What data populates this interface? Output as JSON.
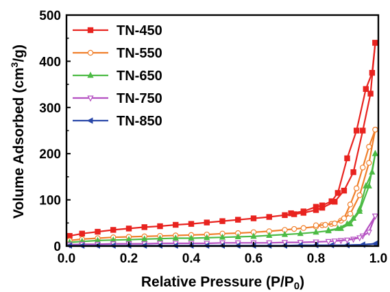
{
  "chart_data": {
    "type": "line",
    "xlabel": "Relative Pressure (P/P",
    "xlabel_sub": "0",
    "xlabel_end": ")",
    "ylabel_main": "Volume Adsorbed (cm",
    "ylabel_sup": "3",
    "ylabel_end": "/g)",
    "xlim": [
      0.0,
      1.0
    ],
    "ylim": [
      0,
      500
    ],
    "xticks": [
      "0.0",
      "0.2",
      "0.4",
      "0.6",
      "0.8",
      "1.0"
    ],
    "yticks": [
      "0",
      "100",
      "200",
      "300",
      "400",
      "500"
    ],
    "legend_position": "top-left",
    "series": [
      {
        "name": "TN-450",
        "color": "#e8231f",
        "marker": "square-filled",
        "adsorption": {
          "x": [
            0.01,
            0.05,
            0.1,
            0.15,
            0.2,
            0.25,
            0.3,
            0.35,
            0.4,
            0.45,
            0.5,
            0.55,
            0.6,
            0.65,
            0.7,
            0.73,
            0.76,
            0.8,
            0.82,
            0.86,
            0.89,
            0.92,
            0.95,
            0.975,
            0.99
          ],
          "y": [
            22,
            27,
            31,
            35,
            38,
            41,
            43,
            46,
            48,
            51,
            54,
            57,
            60,
            63,
            67,
            69,
            72,
            78,
            83,
            96,
            120,
            160,
            250,
            330,
            440
          ]
        },
        "desorption": {
          "x": [
            0.99,
            0.98,
            0.96,
            0.93,
            0.9,
            0.87,
            0.85,
            0.82,
            0.8,
            0.76,
            0.72
          ],
          "y": [
            440,
            375,
            340,
            250,
            190,
            115,
            97,
            88,
            85,
            75,
            71
          ]
        }
      },
      {
        "name": "TN-550",
        "color": "#f07f2a",
        "marker": "circle-open",
        "adsorption": {
          "x": [
            0.01,
            0.05,
            0.1,
            0.15,
            0.2,
            0.25,
            0.3,
            0.35,
            0.4,
            0.45,
            0.5,
            0.55,
            0.6,
            0.65,
            0.7,
            0.73,
            0.76,
            0.8,
            0.82,
            0.85,
            0.88,
            0.91,
            0.94,
            0.97,
            0.99
          ],
          "y": [
            12,
            15,
            17,
            19,
            20,
            21,
            22,
            23,
            24,
            25,
            27,
            28,
            30,
            32,
            35,
            37,
            39,
            42,
            45,
            48,
            55,
            70,
            110,
            180,
            252
          ]
        },
        "desorption": {
          "x": [
            0.99,
            0.97,
            0.95,
            0.93,
            0.91,
            0.89,
            0.86,
            0.83,
            0.8
          ],
          "y": [
            252,
            215,
            170,
            125,
            90,
            60,
            49,
            46,
            45
          ]
        }
      },
      {
        "name": "TN-650",
        "color": "#4cbb44",
        "marker": "triangle-up-filled",
        "adsorption": {
          "x": [
            0.01,
            0.05,
            0.1,
            0.15,
            0.2,
            0.25,
            0.3,
            0.35,
            0.4,
            0.45,
            0.5,
            0.55,
            0.6,
            0.65,
            0.7,
            0.75,
            0.8,
            0.84,
            0.88,
            0.91,
            0.94,
            0.97,
            0.99
          ],
          "y": [
            8,
            10,
            12,
            13,
            14,
            15,
            16,
            17,
            17,
            18,
            19,
            20,
            21,
            23,
            25,
            27,
            30,
            33,
            38,
            48,
            75,
            130,
            200
          ]
        },
        "desorption": {
          "x": [
            0.99,
            0.98,
            0.96,
            0.94,
            0.92,
            0.9,
            0.87,
            0.84
          ],
          "y": [
            200,
            160,
            130,
            80,
            60,
            48,
            38,
            34
          ]
        }
      },
      {
        "name": "TN-750",
        "color": "#b44fc1",
        "marker": "triangle-down-open",
        "adsorption": {
          "x": [
            0.01,
            0.05,
            0.1,
            0.15,
            0.2,
            0.25,
            0.3,
            0.35,
            0.4,
            0.45,
            0.5,
            0.55,
            0.6,
            0.65,
            0.7,
            0.75,
            0.8,
            0.84,
            0.88,
            0.92,
            0.95,
            0.99
          ],
          "y": [
            3,
            4,
            4,
            5,
            5,
            5,
            6,
            6,
            6,
            6,
            7,
            7,
            7,
            7,
            8,
            8,
            9,
            10,
            12,
            15,
            22,
            65
          ]
        },
        "desorption": {
          "x": [
            0.99,
            0.97,
            0.94,
            0.9,
            0.86
          ],
          "y": [
            65,
            30,
            18,
            13,
            11
          ]
        }
      },
      {
        "name": "TN-850",
        "color": "#2846a8",
        "marker": "triangle-left-filled",
        "adsorption": {
          "x": [
            0.01,
            0.05,
            0.1,
            0.15,
            0.2,
            0.25,
            0.3,
            0.35,
            0.4,
            0.45,
            0.5,
            0.55,
            0.6,
            0.65,
            0.7,
            0.75,
            0.8,
            0.85,
            0.9,
            0.95,
            0.99
          ],
          "y": [
            1,
            1,
            1,
            1,
            1,
            1,
            1,
            1,
            1,
            1,
            1,
            1,
            1,
            1,
            1,
            2,
            2,
            2,
            2,
            3,
            5
          ]
        },
        "desorption": {
          "x": [
            0.99,
            0.95,
            0.9
          ],
          "y": [
            5,
            3,
            2
          ]
        }
      }
    ]
  }
}
